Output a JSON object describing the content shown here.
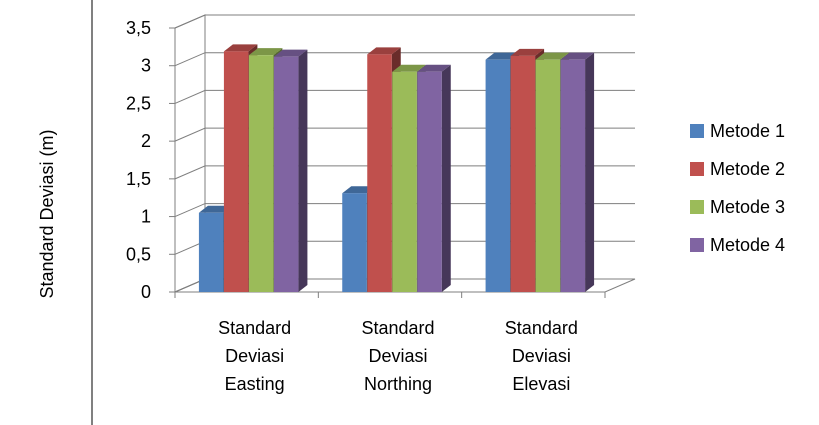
{
  "chart_data": {
    "type": "bar",
    "style": "3d-clustered-column",
    "title": "",
    "ylabel": "Standard Deviasi (m)",
    "xlabel": "",
    "ylim": [
      0,
      3.5
    ],
    "yticks": [
      "0",
      "0,5",
      "1",
      "1,5",
      "2",
      "2,5",
      "3",
      "3,5"
    ],
    "grid": true,
    "legend_position": "right",
    "categories": [
      [
        "Standard",
        "Deviasi",
        "Easting"
      ],
      [
        "Standard",
        "Deviasi",
        "Northing"
      ],
      [
        "Standard",
        "Deviasi",
        "Elevasi"
      ]
    ],
    "series": [
      {
        "name": "Metode 1",
        "color": "#4F81BD",
        "values": [
          1.05,
          1.31,
          3.08
        ]
      },
      {
        "name": "Metode 2",
        "color": "#C0504D",
        "values": [
          3.19,
          3.15,
          3.13
        ]
      },
      {
        "name": "Metode 3",
        "color": "#9BBB59",
        "values": [
          3.14,
          2.92,
          3.08
        ]
      },
      {
        "name": "Metode 4",
        "color": "#8064A2",
        "values": [
          3.12,
          2.92,
          3.08
        ]
      }
    ]
  }
}
